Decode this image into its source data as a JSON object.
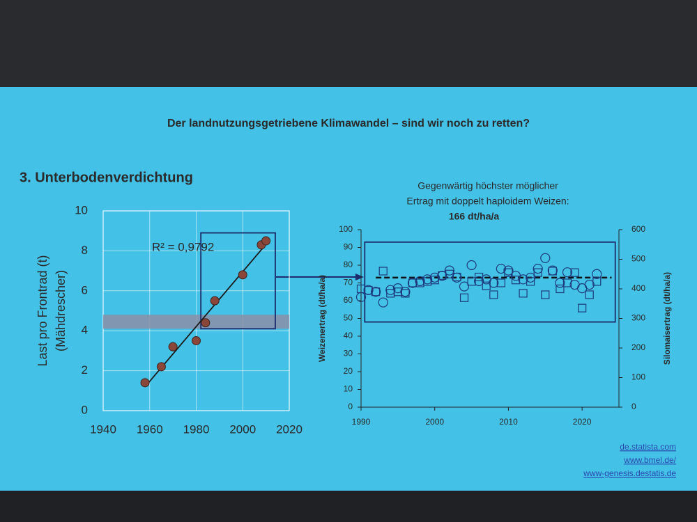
{
  "slide": {
    "title": "Der landnutzungsgetriebene Klimawandel – sind wir noch zu retten?",
    "section": "3. Unterbodenverdichtung",
    "sources": [
      "de.statista.com",
      "www.bmel.de/",
      "www-genesis.destatis.de"
    ]
  },
  "chart_data": [
    {
      "type": "scatter",
      "y_label": [
        "Last pro Frontrad (t)",
        "(Mähdrescher)"
      ],
      "annotation": "R² = 0,9792",
      "x": [
        1958,
        1965,
        1970,
        1980,
        1984,
        1988,
        2000,
        2008,
        2010
      ],
      "values": [
        1.4,
        2.2,
        3.2,
        3.5,
        4.4,
        5.5,
        6.8,
        8.3,
        8.5
      ],
      "color": "#8a4638",
      "trendline": true,
      "xlim": [
        1940,
        2020
      ],
      "xticks": [
        1940,
        1960,
        1980,
        2000,
        2020
      ],
      "ylim": [
        0,
        10
      ],
      "yticks": [
        0,
        2,
        4,
        6,
        8,
        10
      ],
      "grid": true,
      "band": {
        "ylim": [
          4.1,
          4.8
        ],
        "color": "#8c8ea6"
      },
      "box": {
        "xlim": [
          1982,
          2014
        ],
        "ylim": [
          4.1,
          8.9
        ],
        "color": "#1c2c6c"
      }
    },
    {
      "type": "scatter",
      "title": [
        "Gegenwärtig höchster möglicher",
        "Ertrag mit doppelt haploidem Weizen:",
        "166 dt/ha/a"
      ],
      "y_label": "Weizenertrag (dt/ha/a)",
      "y2_label": "Silomaisertrag (dt/ha/a)",
      "x": [
        1990,
        1991,
        1992,
        1993,
        1994,
        1995,
        1996,
        1997,
        1998,
        1999,
        2000,
        2001,
        2002,
        2003,
        2004,
        2005,
        2006,
        2007,
        2008,
        2009,
        2010,
        2011,
        2012,
        2013,
        2014,
        2015,
        2016,
        2017,
        2018,
        2019,
        2020,
        2021,
        2022
      ],
      "series": [
        {
          "marker": "circle",
          "color": "#1c3a7c",
          "values": [
            62,
            66,
            65,
            59,
            66,
            67,
            65,
            70,
            71,
            72,
            73,
            74,
            77,
            73,
            68,
            80,
            71,
            72,
            70,
            78,
            77,
            74,
            72,
            73,
            78,
            84,
            77,
            70,
            76,
            69,
            67,
            69,
            75
          ]
        },
        {
          "marker": "square",
          "color": "#1c3a7c",
          "axis": "y2",
          "values": [
            400,
            395,
            390,
            460,
            385,
            390,
            385,
            420,
            420,
            425,
            430,
            445,
            450,
            440,
            370,
            425,
            440,
            410,
            380,
            420,
            455,
            430,
            385,
            425,
            455,
            380,
            460,
            400,
            420,
            455,
            335,
            380,
            425
          ]
        }
      ],
      "mean_line": 73,
      "xlim": [
        1990,
        2025
      ],
      "xticks": [
        1990,
        2000,
        2010,
        2020
      ],
      "ylim": [
        0,
        100
      ],
      "yticks": [
        0,
        10,
        20,
        30,
        40,
        50,
        60,
        70,
        80,
        90,
        100
      ],
      "y2lim": [
        0,
        600
      ],
      "y2ticks": [
        0,
        100,
        200,
        300,
        400,
        500,
        600
      ],
      "box": {
        "xlim": [
          1990.5,
          2024.5
        ],
        "ylim": [
          48,
          93
        ],
        "color": "#1c2c6c"
      }
    }
  ]
}
